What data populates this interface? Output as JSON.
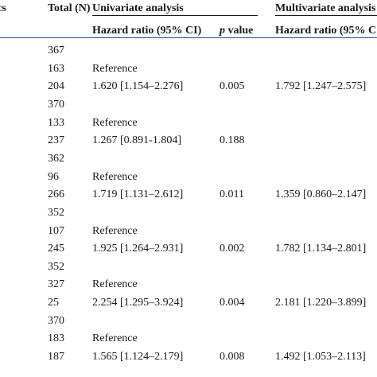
{
  "header": {
    "characteristics_partial": "cs",
    "total": "Total (N)",
    "univariate": "Univariate analysis",
    "multivariate": "Multivariate analysis",
    "hr_uni": "Hazard ratio (95% CI)",
    "p_letter": "p",
    "p_rest": " value",
    "hr_multi": "Hazard ratio (95% C"
  },
  "rows": [
    {
      "total": "367",
      "hr_uni": "",
      "p": "",
      "hr_multi": ""
    },
    {
      "total": "163",
      "hr_uni": "Reference",
      "p": "",
      "hr_multi": ""
    },
    {
      "total": "204",
      "hr_uni": "1.620 [1.154–2.276]",
      "p": "0.005",
      "hr_multi": "1.792 [1.247–2.575]"
    },
    {
      "total": "370",
      "hr_uni": "",
      "p": "",
      "hr_multi": ""
    },
    {
      "total": "133",
      "hr_uni": "Reference",
      "p": "",
      "hr_multi": ""
    },
    {
      "total": "237",
      "hr_uni": "1.267 [0.891-1.804]",
      "p": "0.188",
      "hr_multi": ""
    },
    {
      "total": "362",
      "hr_uni": "",
      "p": "",
      "hr_multi": ""
    },
    {
      "total": "96",
      "hr_uni": "Reference",
      "p": "",
      "hr_multi": ""
    },
    {
      "total": "266",
      "hr_uni": "1.719 [1.131–2.612]",
      "p": "0.011",
      "hr_multi": "1.359 [0.860–2.147]"
    },
    {
      "total": "352",
      "hr_uni": "",
      "p": "",
      "hr_multi": ""
    },
    {
      "total": "107",
      "hr_uni": "Reference",
      "p": "",
      "hr_multi": ""
    },
    {
      "total": "245",
      "hr_uni": "1.925 [1.264–2.931]",
      "p": "0.002",
      "hr_multi": "1.782 [1.134–2.801]"
    },
    {
      "total": "352",
      "hr_uni": "",
      "p": "",
      "hr_multi": ""
    },
    {
      "total": "327",
      "hr_uni": "Reference",
      "p": "",
      "hr_multi": ""
    },
    {
      "total": "25",
      "hr_uni": "2.254 [1.295–3.924]",
      "p": "0.004",
      "hr_multi": "2.181 [1.220–3.899]"
    },
    {
      "total": "370",
      "hr_uni": "",
      "p": "",
      "hr_multi": ""
    },
    {
      "total": "183",
      "hr_uni": "Reference",
      "p": "",
      "hr_multi": ""
    },
    {
      "total": "187",
      "hr_uni": "1.565 [1.124–2.179]",
      "p": "0.008",
      "hr_multi": "1.492 [1.053–2.113]"
    }
  ],
  "colors": {
    "heavy_rule": "#1e4e88",
    "text": "#1a1a1a"
  }
}
